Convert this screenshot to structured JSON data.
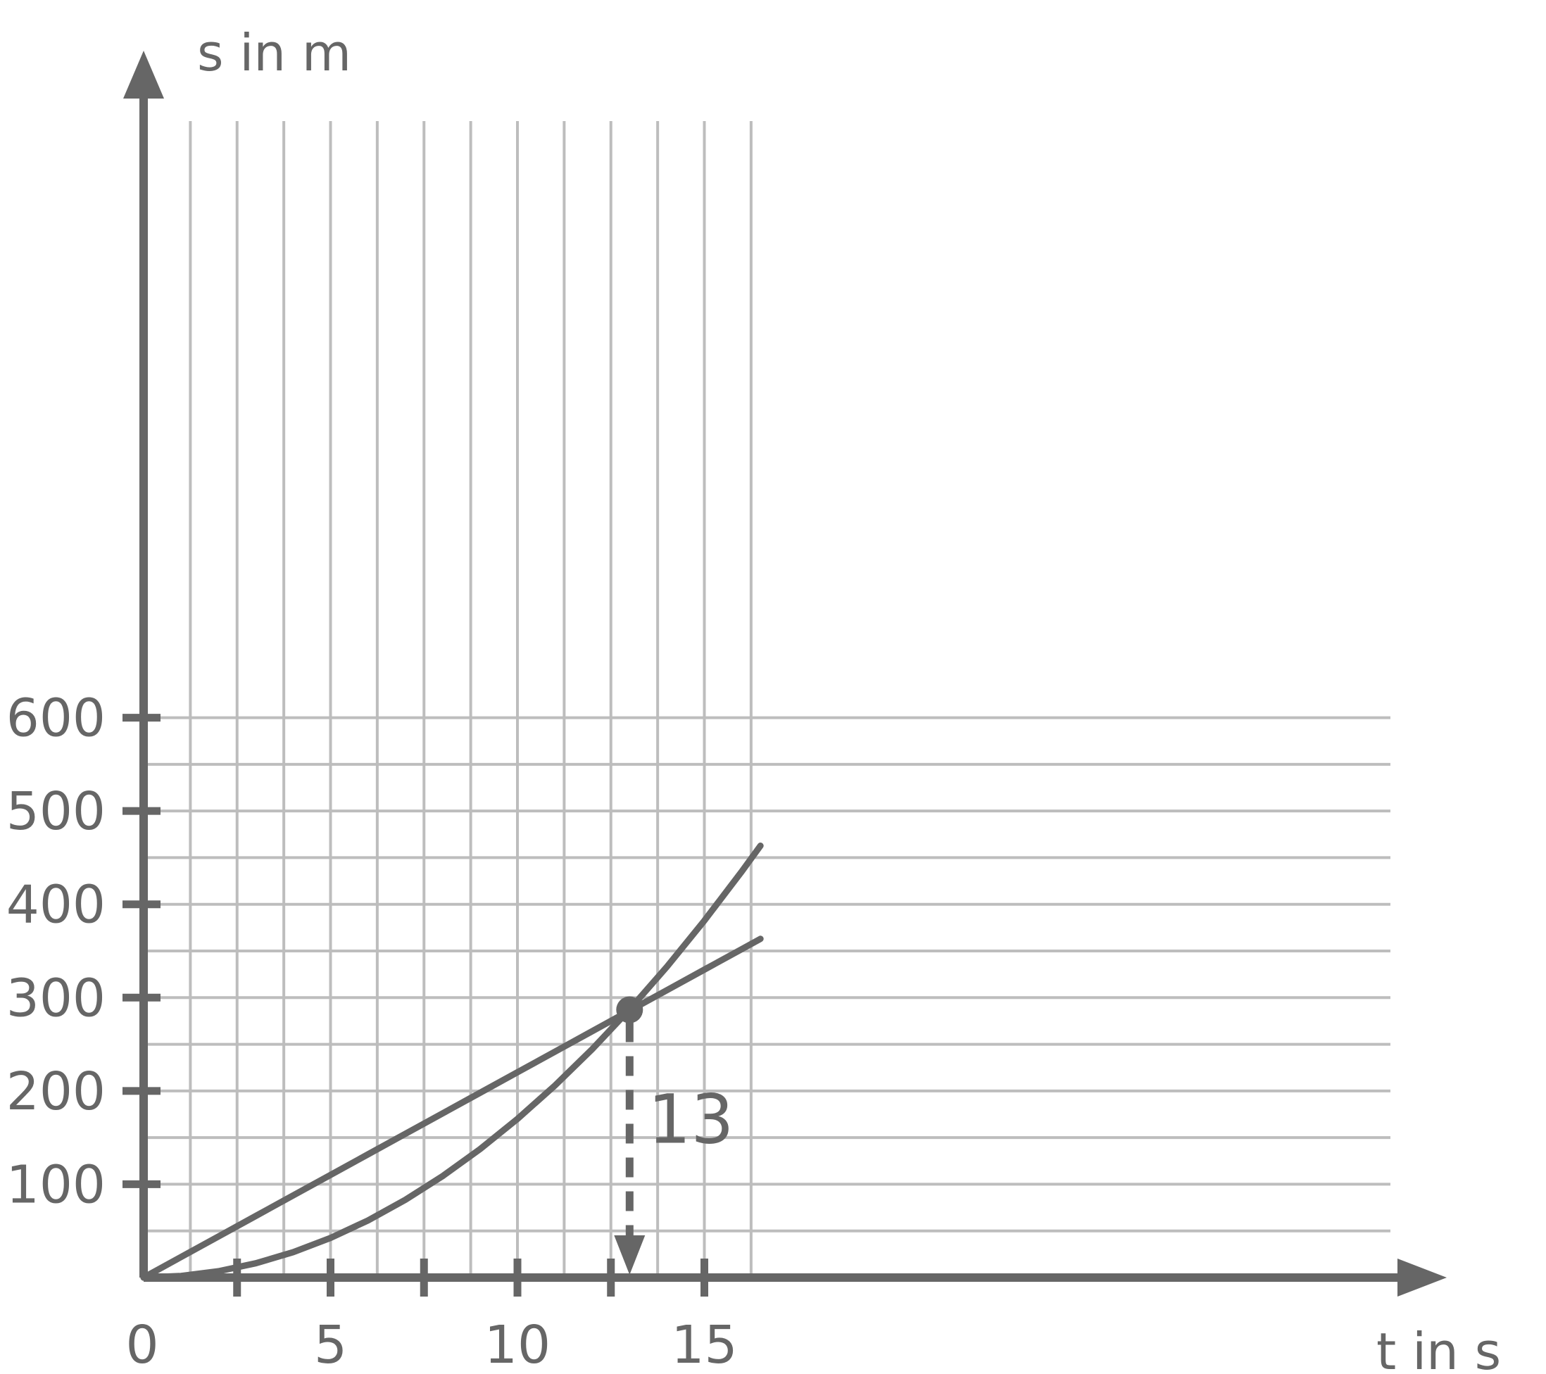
{
  "chart_data": {
    "type": "line",
    "xlabel": "t in s",
    "ylabel": "s in m",
    "xlim": [
      0,
      16.5
    ],
    "ylim": [
      0,
      600
    ],
    "x_ticks": [
      0,
      5,
      10,
      15
    ],
    "x_tick_labels": [
      "0",
      "5",
      "10",
      "15"
    ],
    "x_minor_ticks": [
      2.5,
      7.5,
      12.5
    ],
    "y_ticks": [
      100,
      200,
      300,
      400,
      500,
      600
    ],
    "y_tick_labels": [
      "100",
      "200",
      "300",
      "400",
      "500",
      "600"
    ],
    "grid": true,
    "grid_x_step": 1.25,
    "grid_y_step": 50,
    "series": [
      {
        "x": [
          0,
          1,
          2,
          3,
          4,
          5,
          6,
          7,
          8,
          9,
          10,
          11,
          12,
          13,
          14,
          15,
          16,
          16.5
        ],
        "y": [
          0,
          22,
          44,
          66,
          88,
          110,
          132,
          154,
          176,
          198,
          220,
          242,
          264,
          286,
          308,
          330,
          352,
          363
        ]
      },
      {
        "x": [
          0,
          1,
          2,
          3,
          4,
          5,
          6,
          7,
          8,
          9,
          10,
          11,
          12,
          13,
          14,
          15,
          16,
          16.5
        ],
        "y": [
          0,
          1.7,
          6.8,
          15.3,
          27.2,
          42.5,
          61.2,
          83.3,
          108.8,
          137.7,
          170,
          205.7,
          244.8,
          287.3,
          333.2,
          382.5,
          435.2,
          462.8
        ]
      }
    ],
    "annotations": [
      {
        "type": "point",
        "x": 13,
        "y": 287
      },
      {
        "type": "dashed-drop-line",
        "x": 13,
        "from_y": 287,
        "to_y": 0
      },
      {
        "type": "label",
        "text": "13",
        "x": 13,
        "y": 170
      }
    ]
  }
}
